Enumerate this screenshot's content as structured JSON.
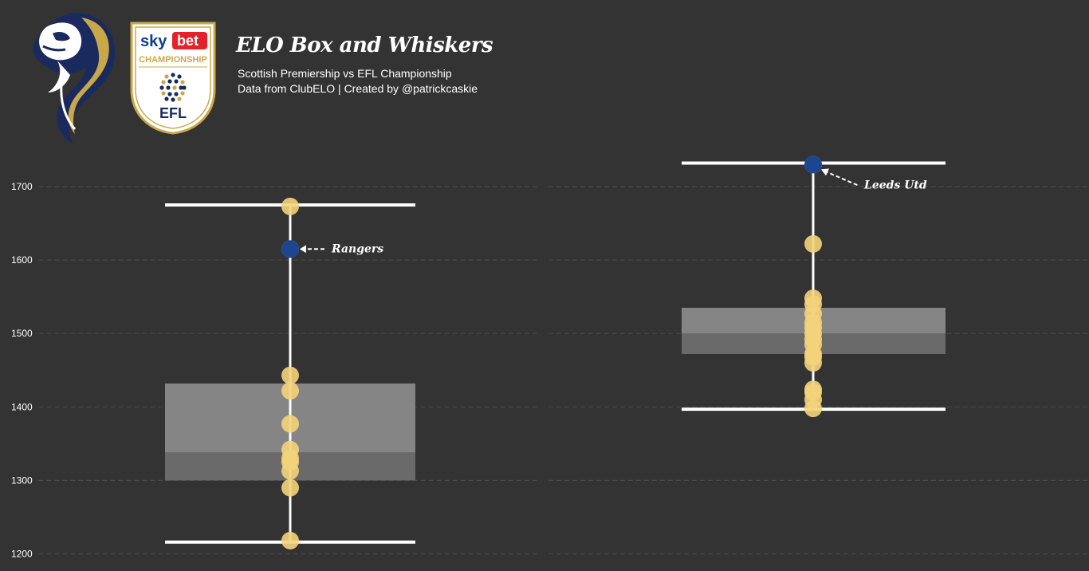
{
  "header": {
    "title": "ELO Box and Whiskers",
    "subtitle_1": "Scottish Premiership vs EFL Championship",
    "subtitle_2": "Data from ClubELO | Created by @patrickcaskie",
    "efl_logo": {
      "sky": "sky",
      "bet": "bet",
      "championship": "CHAMPIONSHIP",
      "efl": "EFL"
    }
  },
  "colors": {
    "background": "#333333",
    "grid": "#4a4a4a",
    "box_upper": "#858585",
    "box_lower": "#6a6a6a",
    "whisker": "#ffffff",
    "point": "#f3d37a",
    "highlight": "#1c4690",
    "text": "#ffffff"
  },
  "chart_data": {
    "type": "box-and-scatter",
    "yticks": [
      1200,
      1300,
      1400,
      1500,
      1600,
      1700
    ],
    "ylim": [
      1195,
      1735
    ],
    "grid": true,
    "series": [
      {
        "name": "Scottish Premiership",
        "q1": 1300,
        "median": 1338,
        "q3": 1432,
        "whisker_low": 1216,
        "whisker_high": 1675,
        "points": [
          1673,
          1615,
          1443,
          1422,
          1377,
          1342,
          1330,
          1325,
          1313,
          1290,
          1218
        ],
        "highlight": {
          "label": "Rangers",
          "value": 1615
        }
      },
      {
        "name": "EFL Championship",
        "q1": 1472,
        "median": 1500,
        "q3": 1535,
        "whisker_low": 1397,
        "whisker_high": 1732,
        "points": [
          1730,
          1622,
          1548,
          1540,
          1527,
          1515,
          1508,
          1500,
          1492,
          1485,
          1472,
          1468,
          1460,
          1424,
          1420,
          1410,
          1398
        ],
        "highlight": {
          "label": "Leeds Utd",
          "value": 1730
        }
      }
    ]
  }
}
